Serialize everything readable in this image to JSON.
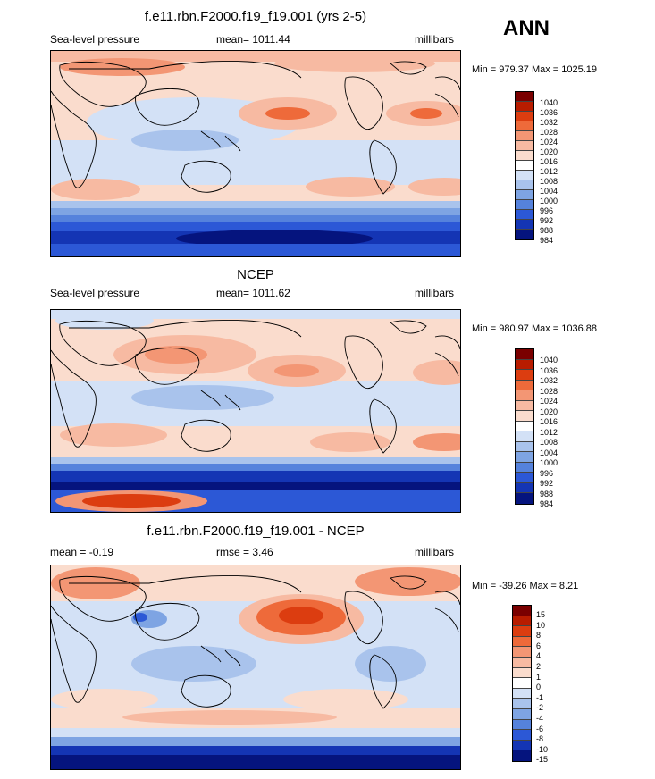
{
  "season": "ANN",
  "panels": [
    {
      "id": "model",
      "title": "f.e11.rbn.F2000.f19_f19.001 (yrs 2-5)",
      "left_label": "Sea-level pressure",
      "center_label": "mean= 1011.44",
      "right_label": "millibars",
      "minmax": "Min = 979.37 Max = 1025.19",
      "levels": [
        "1040",
        "1036",
        "1032",
        "1028",
        "1024",
        "1020",
        "1016",
        "1012",
        "1008",
        "1004",
        "1000",
        "996",
        "992",
        "988",
        "984"
      ]
    },
    {
      "id": "obs",
      "title": "NCEP",
      "left_label": "Sea-level pressure",
      "center_label": "mean= 1011.62",
      "right_label": "millibars",
      "minmax": "Min = 980.97 Max = 1036.88",
      "levels": [
        "1040",
        "1036",
        "1032",
        "1028",
        "1024",
        "1020",
        "1016",
        "1012",
        "1008",
        "1004",
        "1000",
        "996",
        "992",
        "988",
        "984"
      ]
    },
    {
      "id": "diff",
      "title": "f.e11.rbn.F2000.f19_f19.001 - NCEP",
      "left_label": "mean =  -0.19",
      "center_label": "rmse =   3.46",
      "right_label": "millibars",
      "minmax": "Min = -39.26 Max =   8.21",
      "levels": [
        "15",
        "10",
        "8",
        "6",
        "4",
        "2",
        "1",
        "0",
        "-1",
        "-2",
        "-4",
        "-6",
        "-8",
        "-10",
        "-15"
      ]
    }
  ],
  "colors": [
    "#7a0000",
    "#b81c00",
    "#dc3d10",
    "#ee6a3a",
    "#f39674",
    "#f7baa2",
    "#fadccd",
    "#ffffff",
    "#d3e1f6",
    "#a9c3ec",
    "#7ea4e3",
    "#5582dc",
    "#2c58d6",
    "#1435b4",
    "#05147e"
  ]
}
